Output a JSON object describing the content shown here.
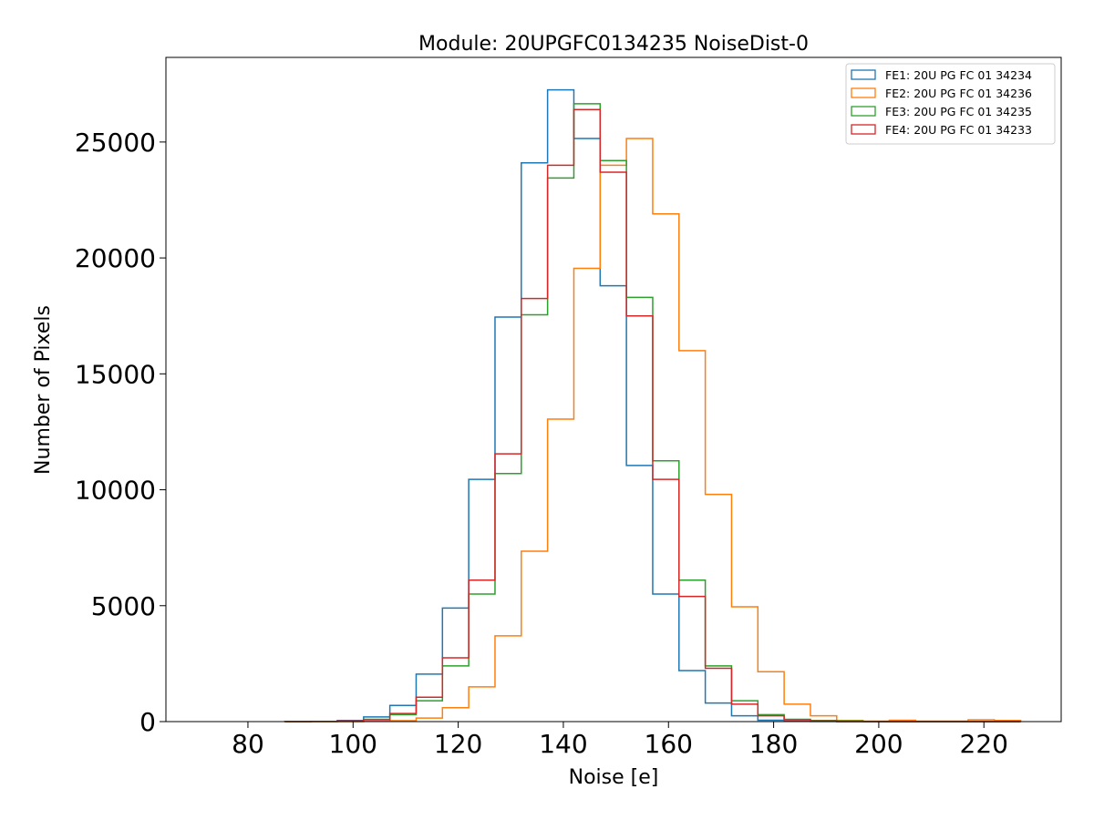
{
  "chart_data": {
    "type": "histogram-step",
    "title": "Module: 20UPGFC0134235 NoiseDist-0",
    "xlabel": "Noise [e]",
    "ylabel": "Number of Pixels",
    "xlim": [
      64.4,
      234.7
    ],
    "ylim": [
      0,
      28650
    ],
    "xticks": [
      80,
      100,
      120,
      140,
      160,
      180,
      200,
      220
    ],
    "yticks": [
      0,
      5000,
      10000,
      15000,
      20000,
      25000
    ],
    "bin_width": 5,
    "bin_starts": [
      87,
      92,
      97,
      102,
      107,
      112,
      117,
      122,
      127,
      132,
      137,
      142,
      147,
      152,
      157,
      162,
      167,
      172,
      177,
      182,
      187,
      192,
      197,
      202,
      207,
      212,
      217,
      222
    ],
    "legend_position": "top-right",
    "series": [
      {
        "name": "FE1: 20U PG FC 01 34234",
        "color": "#1f77b4",
        "values": [
          5,
          10,
          50,
          200,
          700,
          2050,
          4900,
          10450,
          17450,
          24100,
          27250,
          25150,
          18800,
          11050,
          5500,
          2200,
          800,
          250,
          60,
          20,
          5,
          0,
          0,
          0,
          0,
          0,
          0,
          0
        ]
      },
      {
        "name": "FE2: 20U PG FC 01 34236",
        "color": "#ff7f0e",
        "values": [
          0,
          0,
          0,
          10,
          40,
          150,
          600,
          1500,
          3700,
          7350,
          13050,
          19550,
          24000,
          25150,
          21900,
          16000,
          9800,
          4950,
          2150,
          750,
          250,
          50,
          20,
          60,
          20,
          20,
          80,
          50
        ]
      },
      {
        "name": "FE3: 20U PG FC 01 34235",
        "color": "#2ca02c",
        "values": [
          0,
          5,
          20,
          100,
          300,
          900,
          2400,
          5500,
          10700,
          17550,
          23450,
          26650,
          24200,
          18300,
          11250,
          6100,
          2400,
          900,
          300,
          100,
          50,
          30,
          0,
          0,
          0,
          0,
          0,
          0
        ]
      },
      {
        "name": "FE4: 20U PG FC 01 34233",
        "color": "#d62728",
        "values": [
          0,
          5,
          30,
          80,
          350,
          1050,
          2750,
          6100,
          11550,
          18250,
          24000,
          26400,
          23700,
          17500,
          10450,
          5400,
          2300,
          750,
          250,
          80,
          30,
          0,
          0,
          0,
          0,
          0,
          0,
          0
        ]
      }
    ]
  }
}
